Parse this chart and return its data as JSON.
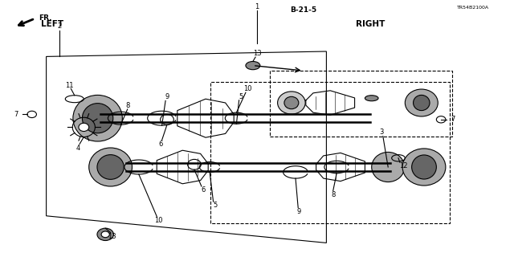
{
  "title": "",
  "background_color": "#ffffff",
  "line_color": "#000000",
  "label_color": "#000000",
  "LEFT_label": "LEFT",
  "RIGHT_label": "RIGHT",
  "FR_label": "FR.",
  "B215_label": "B-21-5",
  "diagram_code": "TR54B2100A",
  "part_numbers": [
    "1",
    "2",
    "3",
    "4",
    "5",
    "6",
    "7",
    "8",
    "9",
    "10",
    "11",
    "12",
    "13"
  ],
  "label_fontsize": 6.0,
  "title_fontsize": 7.5
}
